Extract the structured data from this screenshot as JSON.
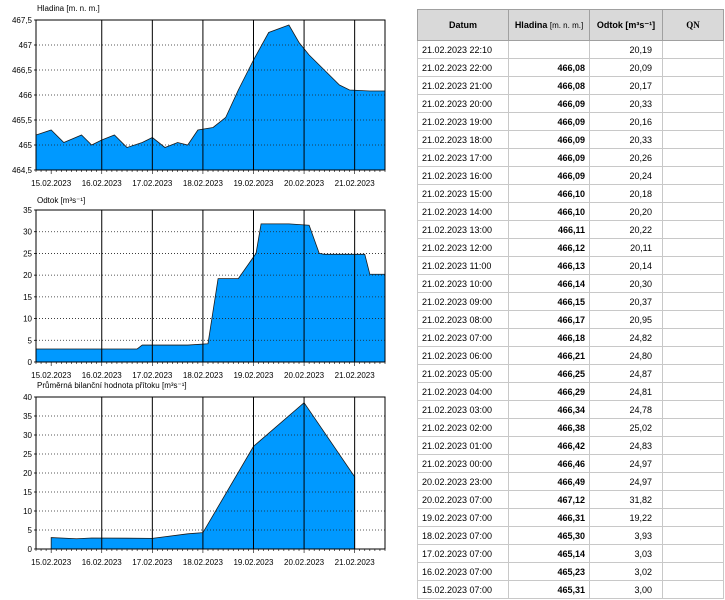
{
  "chart_data": [
    {
      "type": "area",
      "title": "Hladina [m. n. m.]",
      "x_labels": [
        "15.02.2023",
        "16.02.2023",
        "17.02.2023",
        "18.02.2023",
        "19.02.2023",
        "20.02.2023",
        "21.02.2023"
      ],
      "yticks": [
        "464,5",
        "465",
        "465,5",
        "466",
        "466,5",
        "467",
        "467,5"
      ],
      "ylim": [
        464.5,
        467.5
      ],
      "x": [
        0,
        0.3,
        0.55,
        0.9,
        1.1,
        1.3,
        1.55,
        1.8,
        2.1,
        2.3,
        2.55,
        2.8,
        3.0,
        3.2,
        3.5,
        3.75,
        4.0,
        4.3,
        4.6,
        5.0,
        5.2,
        5.4,
        5.6,
        5.8,
        6.0,
        6.2,
        6.6,
        6.9
      ],
      "values": [
        465.2,
        465.3,
        465.05,
        465.2,
        465.0,
        465.1,
        465.2,
        464.95,
        465.05,
        465.15,
        464.95,
        465.05,
        465.0,
        465.3,
        465.35,
        465.55,
        466.1,
        466.7,
        467.25,
        467.4,
        467.05,
        466.8,
        466.6,
        466.4,
        466.2,
        466.1,
        466.08,
        466.08
      ],
      "grid": true
    },
    {
      "type": "area",
      "title": "Odtok [m³s⁻¹]",
      "x_labels": [
        "15.02.2023",
        "16.02.2023",
        "17.02.2023",
        "18.02.2023",
        "19.02.2023",
        "20.02.2023",
        "21.02.2023"
      ],
      "yticks": [
        "0",
        "5",
        "10",
        "15",
        "20",
        "25",
        "30",
        "35"
      ],
      "ylim": [
        0,
        35
      ],
      "x": [
        0,
        0.9,
        1.0,
        2.0,
        2.1,
        3.0,
        3.4,
        3.6,
        3.8,
        4.0,
        4.35,
        4.45,
        4.9,
        5.0,
        5.4,
        5.6,
        5.7,
        6.5,
        6.6,
        6.9
      ],
      "values": [
        3.0,
        3.0,
        3.0,
        3.0,
        3.9,
        3.9,
        4.2,
        19.2,
        19.2,
        19.2,
        25.0,
        31.8,
        31.8,
        31.8,
        31.5,
        25.0,
        24.8,
        24.8,
        20.2,
        20.2
      ],
      "grid": true
    },
    {
      "type": "area",
      "title": "Průměrná bilanční hodnota přítoku   [m³s⁻¹]",
      "x_labels": [
        "15.02.2023",
        "16.02.2023",
        "17.02.2023",
        "18.02.2023",
        "19.02.2023",
        "20.02.2023",
        "21.02.2023"
      ],
      "yticks": [
        "0",
        "5",
        "10",
        "15",
        "20",
        "25",
        "30",
        "35",
        "40"
      ],
      "ylim": [
        0,
        40
      ],
      "x": [
        0.3,
        0.8,
        1.1,
        2.3,
        3.0,
        3.3,
        4.3,
        5.3,
        6.3
      ],
      "values": [
        3.0,
        2.7,
        2.9,
        2.8,
        4.0,
        4.3,
        27.0,
        38.5,
        19.0
      ],
      "grid": true
    }
  ],
  "table": {
    "headers": {
      "date": "Datum",
      "level": "Hladina",
      "level_unit": "[m. n. m.]",
      "outflow": "Odtok [m³s⁻¹]",
      "qn": "QN"
    },
    "rows": [
      {
        "date": "21.02.2023 22:10",
        "level": "",
        "outflow": "20,19"
      },
      {
        "date": "21.02.2023 22:00",
        "level": "466,08",
        "outflow": "20,09"
      },
      {
        "date": "21.02.2023 21:00",
        "level": "466,08",
        "outflow": "20,17"
      },
      {
        "date": "21.02.2023 20:00",
        "level": "466,09",
        "outflow": "20,33"
      },
      {
        "date": "21.02.2023 19:00",
        "level": "466,09",
        "outflow": "20,16"
      },
      {
        "date": "21.02.2023 18:00",
        "level": "466,09",
        "outflow": "20,33"
      },
      {
        "date": "21.02.2023 17:00",
        "level": "466,09",
        "outflow": "20,26"
      },
      {
        "date": "21.02.2023 16:00",
        "level": "466,09",
        "outflow": "20,24"
      },
      {
        "date": "21.02.2023 15:00",
        "level": "466,10",
        "outflow": "20,18"
      },
      {
        "date": "21.02.2023 14:00",
        "level": "466,10",
        "outflow": "20,20"
      },
      {
        "date": "21.02.2023 13:00",
        "level": "466,11",
        "outflow": "20,22"
      },
      {
        "date": "21.02.2023 12:00",
        "level": "466,12",
        "outflow": "20,11"
      },
      {
        "date": "21.02.2023 11:00",
        "level": "466,13",
        "outflow": "20,14"
      },
      {
        "date": "21.02.2023 10:00",
        "level": "466,14",
        "outflow": "20,30"
      },
      {
        "date": "21.02.2023 09:00",
        "level": "466,15",
        "outflow": "20,37"
      },
      {
        "date": "21.02.2023 08:00",
        "level": "466,17",
        "outflow": "20,95"
      },
      {
        "date": "21.02.2023 07:00",
        "level": "466,18",
        "outflow": "24,82"
      },
      {
        "date": "21.02.2023 06:00",
        "level": "466,21",
        "outflow": "24,80"
      },
      {
        "date": "21.02.2023 05:00",
        "level": "466,25",
        "outflow": "24,87"
      },
      {
        "date": "21.02.2023 04:00",
        "level": "466,29",
        "outflow": "24,81"
      },
      {
        "date": "21.02.2023 03:00",
        "level": "466,34",
        "outflow": "24,78"
      },
      {
        "date": "21.02.2023 02:00",
        "level": "466,38",
        "outflow": "25,02"
      },
      {
        "date": "21.02.2023 01:00",
        "level": "466,42",
        "outflow": "24,83"
      },
      {
        "date": "21.02.2023 00:00",
        "level": "466,46",
        "outflow": "24,97"
      },
      {
        "date": "20.02.2023 23:00",
        "level": "466,49",
        "outflow": "24,97"
      },
      {
        "date": "20.02.2023 07:00",
        "level": "467,12",
        "outflow": "31,82"
      },
      {
        "date": "19.02.2023 07:00",
        "level": "466,31",
        "outflow": "19,22"
      },
      {
        "date": "18.02.2023 07:00",
        "level": "465,30",
        "outflow": "3,93"
      },
      {
        "date": "17.02.2023 07:00",
        "level": "465,14",
        "outflow": "3,03"
      },
      {
        "date": "16.02.2023 07:00",
        "level": "465,23",
        "outflow": "3,02"
      },
      {
        "date": "15.02.2023 07:00",
        "level": "465,31",
        "outflow": "3,00"
      }
    ]
  },
  "colors": {
    "fill": "#0099ff",
    "grid": "#333333",
    "header_bg": "#d9d9d9"
  }
}
